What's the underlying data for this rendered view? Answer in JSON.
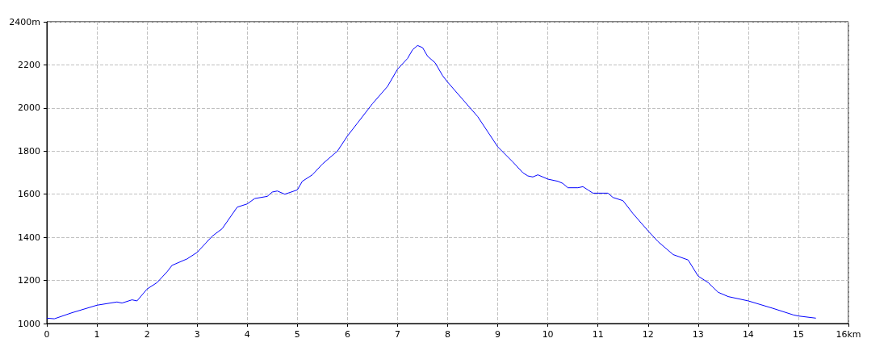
{
  "chart_data": {
    "type": "line",
    "x": [
      0,
      0.15,
      0.5,
      1,
      1.4,
      1.5,
      1.7,
      1.8,
      2,
      2.2,
      2.4,
      2.5,
      2.8,
      3,
      3.3,
      3.5,
      3.8,
      4,
      4.15,
      4.4,
      4.5,
      4.6,
      4.75,
      5,
      5.1,
      5.3,
      5.5,
      5.8,
      6,
      6.2,
      6.5,
      6.8,
      7,
      7.2,
      7.3,
      7.4,
      7.5,
      7.6,
      7.75,
      7.9,
      8,
      8.3,
      8.6,
      8.8,
      9,
      9.3,
      9.5,
      9.6,
      9.7,
      9.8,
      10,
      10.2,
      10.3,
      10.4,
      10.6,
      10.7,
      10.8,
      10.9,
      11.2,
      11.3,
      11.5,
      11.7,
      12,
      12.2,
      12.5,
      12.8,
      13,
      13.2,
      13.4,
      13.6,
      14,
      14.5,
      14.9,
      15,
      15.35
    ],
    "series": [
      {
        "color": "#0000ff",
        "values": [
          1025,
          1022,
          1050,
          1085,
          1100,
          1095,
          1110,
          1105,
          1160,
          1190,
          1240,
          1270,
          1300,
          1330,
          1405,
          1440,
          1540,
          1555,
          1580,
          1590,
          1610,
          1615,
          1600,
          1620,
          1660,
          1690,
          1740,
          1800,
          1870,
          1930,
          2020,
          2100,
          2180,
          2230,
          2270,
          2290,
          2280,
          2240,
          2210,
          2150,
          2120,
          2040,
          1960,
          1890,
          1820,
          1750,
          1700,
          1685,
          1680,
          1690,
          1670,
          1660,
          1650,
          1630,
          1630,
          1635,
          1620,
          1605,
          1605,
          1585,
          1570,
          1510,
          1430,
          1380,
          1320,
          1295,
          1220,
          1190,
          1145,
          1125,
          1105,
          1070,
          1040,
          1035,
          1025
        ]
      }
    ],
    "xlim": [
      0,
      16
    ],
    "xticks": [
      0,
      1,
      2,
      3,
      4,
      5,
      6,
      7,
      8,
      9,
      10,
      11,
      12,
      13,
      14,
      15,
      {
        "value": 16,
        "label": "16km"
      }
    ],
    "ylim": [
      1000,
      2400
    ],
    "yticks": [
      1000,
      1200,
      1400,
      1600,
      1800,
      2000,
      2200,
      {
        "value": 2400,
        "label": "2400m"
      }
    ],
    "grid": true,
    "marker": "none",
    "line_style": "solid"
  }
}
